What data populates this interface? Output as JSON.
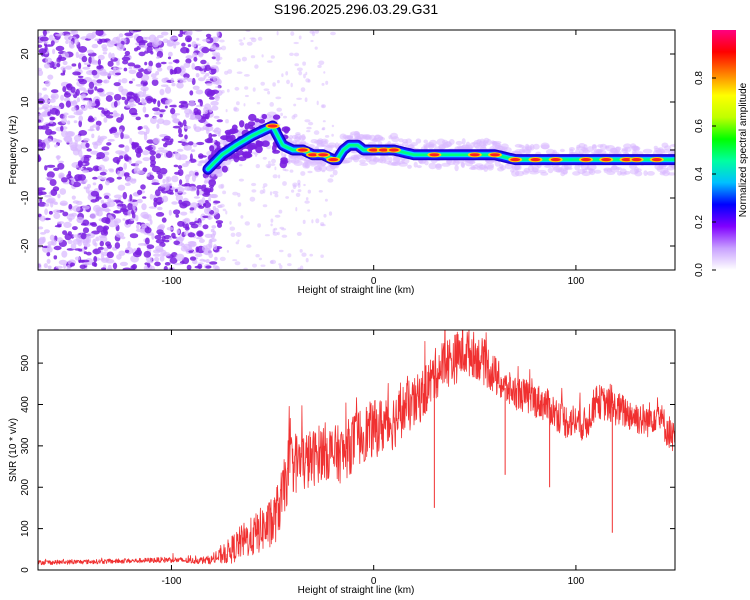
{
  "title": "S196.2025.296.03.29.G31",
  "colors": {
    "snr_line": "#f03030",
    "scatter_dark": "#7a1fe0",
    "scatter_light": "#d8b8ff",
    "ridge_outer": "#1a1aff",
    "ridge_mid": "#00d8ff",
    "ridge_inner": "#ff2020"
  },
  "chart_data": [
    {
      "type": "heatmap",
      "name": "spectrogram",
      "xlabel": "Height of straight line (km)",
      "ylabel": "Frequency (Hz)",
      "xlim": [
        -166,
        149
      ],
      "ylim": [
        -25,
        25
      ],
      "xticks": [
        -100,
        0,
        100
      ],
      "yticks": [
        -20,
        -10,
        0,
        10,
        20
      ],
      "colorbar": {
        "label": "Normalized spectral amplitude",
        "range": [
          0,
          1
        ],
        "ticks": [
          "0.0",
          "0.2",
          "0.4",
          "0.6",
          "0.8"
        ],
        "tick_values": [
          0.0,
          0.2,
          0.4,
          0.6,
          0.8
        ],
        "colormap": [
          "#ffffff",
          "#c8a0ff",
          "#8000ff",
          "#0000ff",
          "#00c0ff",
          "#00ffa0",
          "#00ff00",
          "#c0ff00",
          "#ffff00",
          "#ff8000",
          "#ff0000",
          "#ff0080"
        ]
      },
      "noise_region": [
        -166,
        -80
      ],
      "ridge": {
        "x": [
          -82,
          -75,
          -68,
          -60,
          -55,
          -50,
          -45,
          -40,
          -35,
          -30,
          -25,
          -20,
          -18,
          -15,
          -12,
          -8,
          -5,
          0,
          10,
          20,
          30,
          40,
          50,
          60,
          70,
          80,
          90,
          95,
          100,
          110,
          120,
          130,
          140,
          149
        ],
        "y": [
          -4,
          -1,
          1,
          3,
          4,
          5,
          1,
          0,
          0,
          -1,
          -1,
          -2,
          -2,
          0,
          1,
          1,
          0,
          0,
          0,
          -1,
          -1,
          -1,
          -1,
          -1,
          -2,
          -2,
          -2,
          -2,
          -2,
          -2,
          -2,
          -2,
          -2,
          -2
        ]
      },
      "ridge_hot_spots": [
        -50,
        -35,
        -30,
        -25,
        -20,
        0,
        5,
        10,
        30,
        50,
        60,
        70,
        80,
        90,
        105,
        115,
        125,
        130,
        140
      ]
    },
    {
      "type": "line",
      "name": "snr",
      "xlabel": "Height of straight line (km)",
      "ylabel": "SNR (10 * v/v)",
      "xlim": [
        -166,
        149
      ],
      "ylim": [
        0,
        580
      ],
      "xticks": [
        -100,
        0,
        100
      ],
      "yticks": [
        0,
        100,
        200,
        300,
        400,
        500
      ],
      "series": [
        {
          "name": "SNR",
          "x": [
            -166,
            -140,
            -120,
            -100,
            -90,
            -80,
            -75,
            -70,
            -65,
            -60,
            -55,
            -50,
            -45,
            -42,
            -40,
            -35,
            -30,
            -25,
            -20,
            -15,
            -10,
            -5,
            0,
            5,
            10,
            15,
            20,
            25,
            30,
            35,
            40,
            45,
            50,
            55,
            60,
            65,
            70,
            75,
            80,
            85,
            90,
            95,
            100,
            105,
            110,
            115,
            120,
            125,
            130,
            135,
            140,
            145,
            149
          ],
          "values": [
            18,
            20,
            22,
            25,
            22,
            25,
            35,
            50,
            70,
            80,
            100,
            110,
            180,
            250,
            260,
            260,
            270,
            290,
            280,
            280,
            310,
            330,
            340,
            350,
            360,
            390,
            400,
            430,
            470,
            500,
            510,
            530,
            520,
            500,
            470,
            440,
            430,
            420,
            410,
            400,
            380,
            360,
            360,
            350,
            410,
            400,
            390,
            380,
            370,
            360,
            380,
            340,
            320
          ],
          "noise_amplitude": [
            8,
            8,
            8,
            10,
            10,
            15,
            30,
            50,
            60,
            70,
            80,
            90,
            100,
            110,
            110,
            110,
            100,
            100,
            100,
            100,
            100,
            100,
            100,
            100,
            100,
            90,
            90,
            90,
            90,
            90,
            90,
            90,
            80,
            80,
            70,
            60,
            60,
            60,
            60,
            60,
            60,
            60,
            60,
            60,
            60,
            60,
            60,
            60,
            60,
            60,
            60,
            60,
            60
          ]
        }
      ],
      "spikes_down": [
        {
          "x": 30,
          "y": 150
        },
        {
          "x": 118,
          "y": 90
        },
        {
          "x": 65,
          "y": 230
        },
        {
          "x": 87,
          "y": 200
        }
      ]
    }
  ]
}
